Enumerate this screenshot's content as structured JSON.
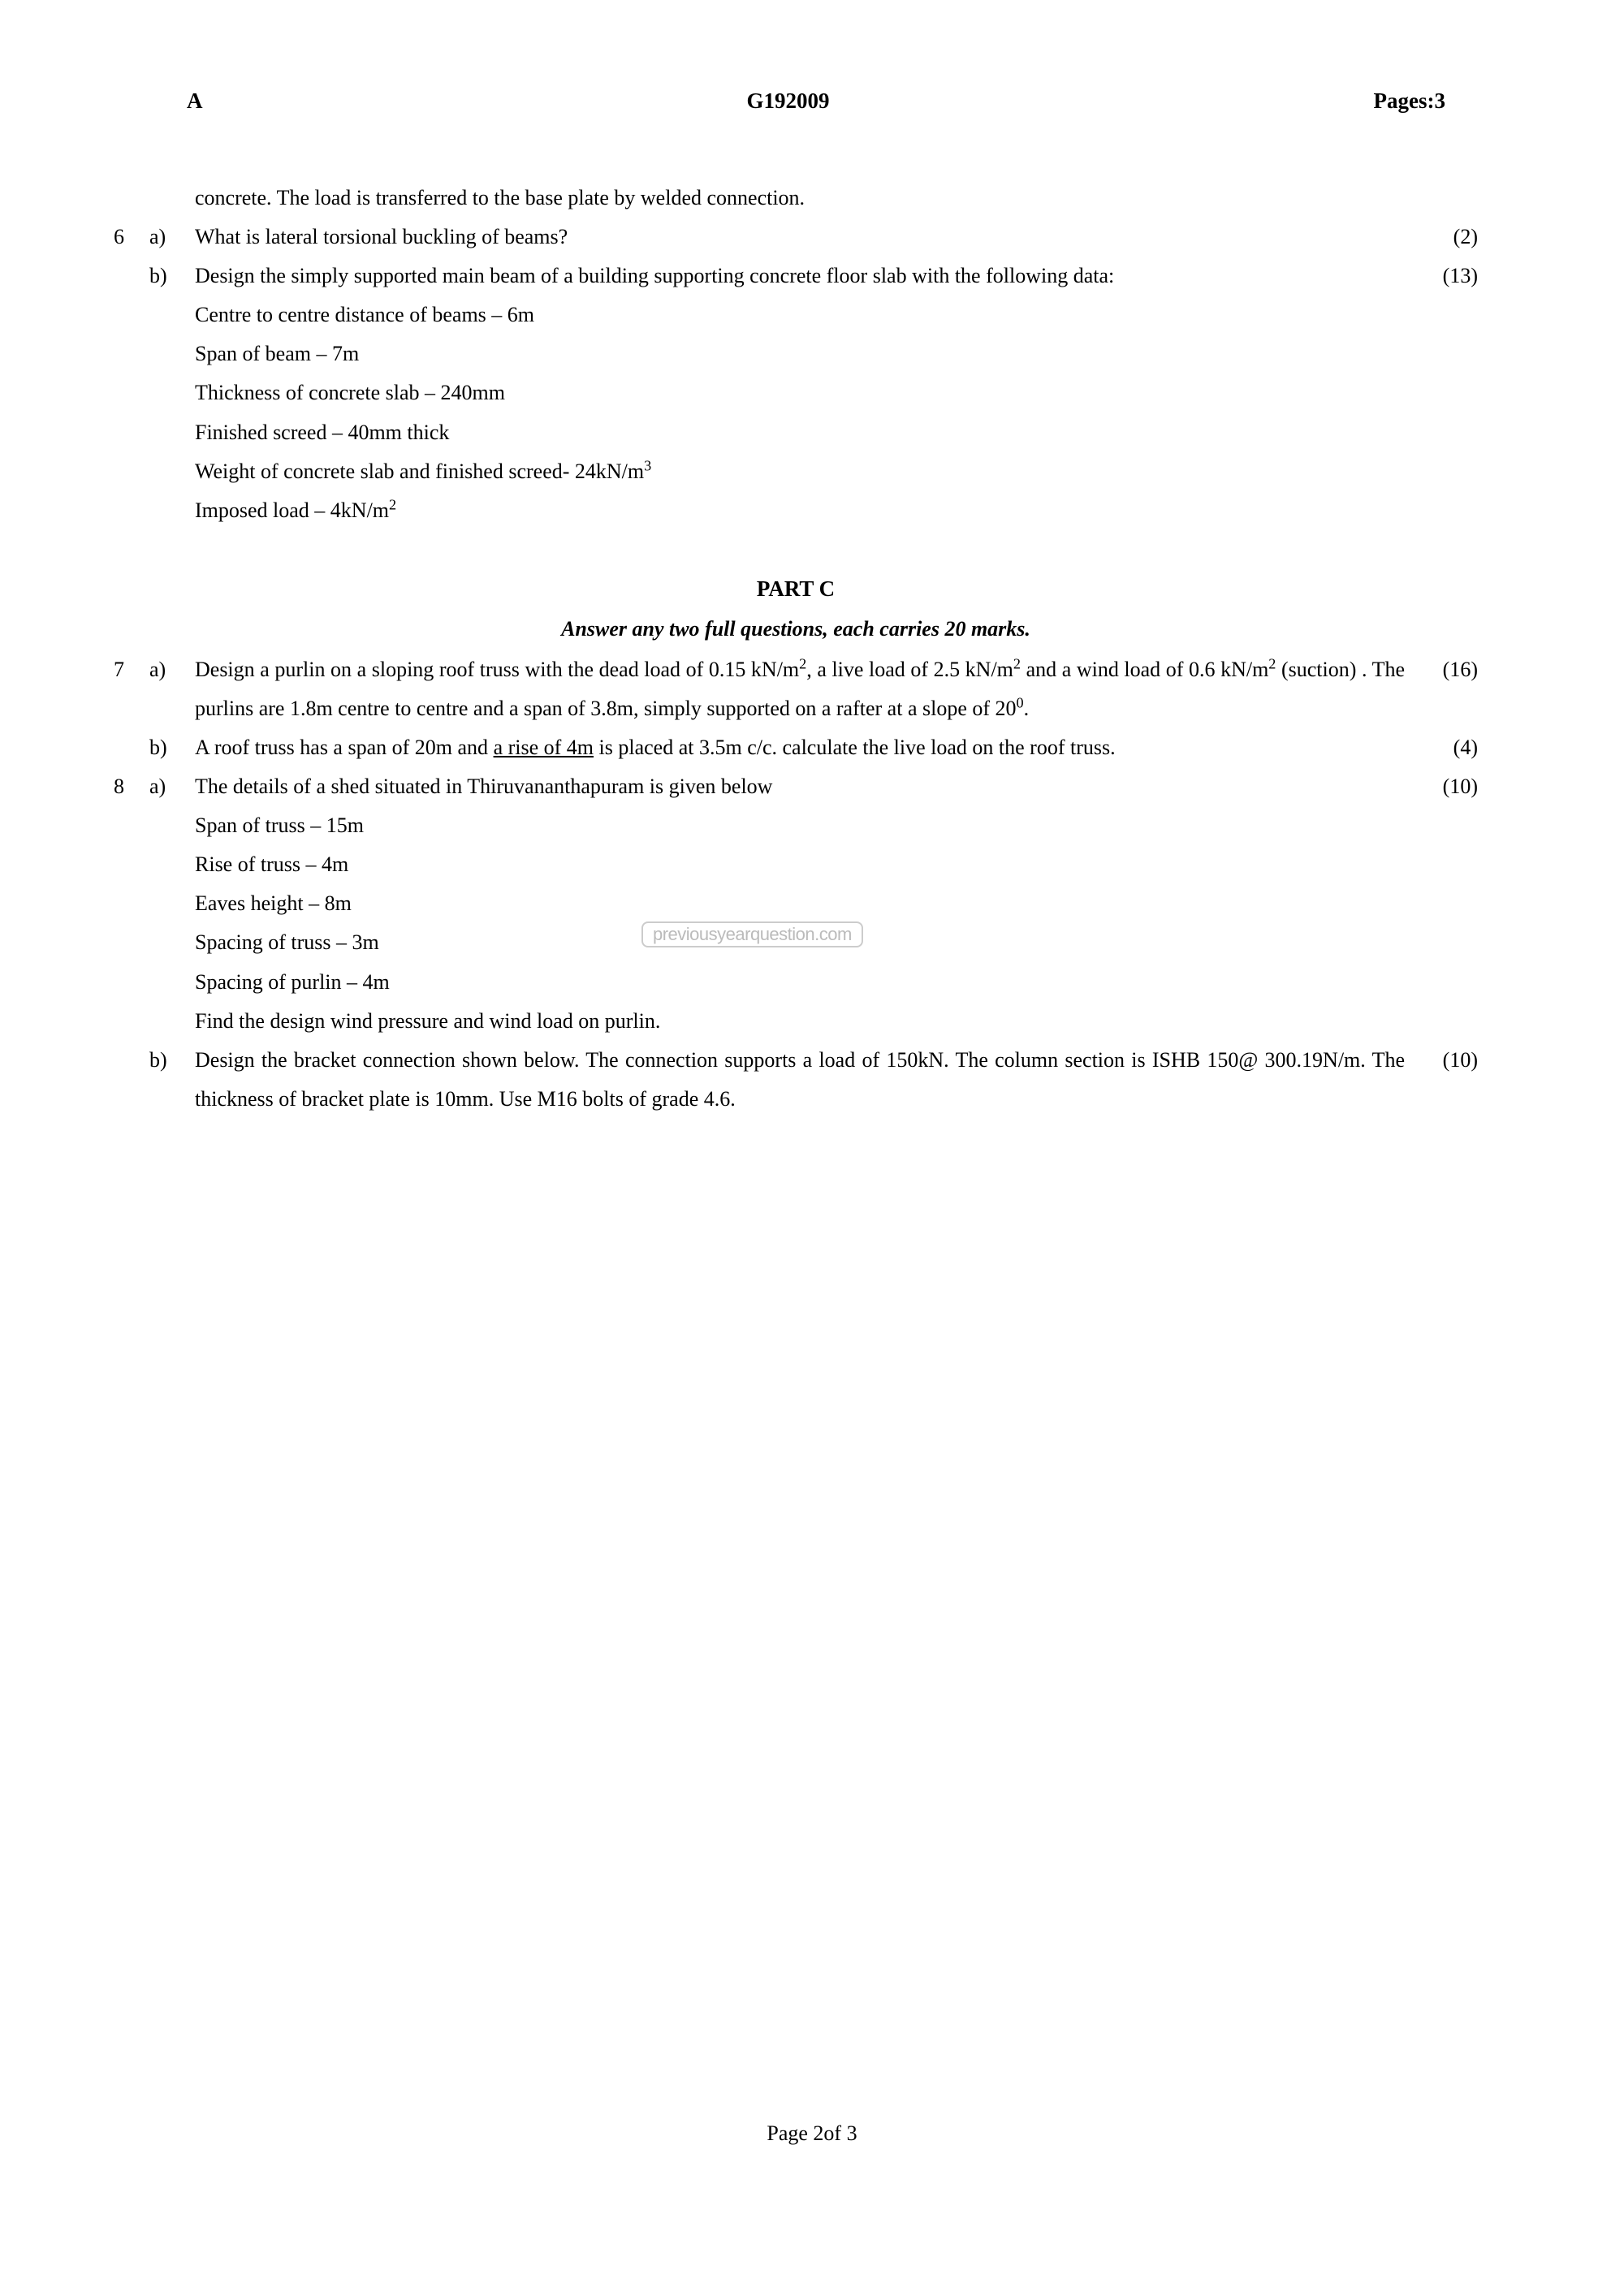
{
  "header": {
    "left": "A",
    "center": "G192009",
    "right": "Pages:3"
  },
  "continuation": {
    "text": "concrete. The load is transferred to the base plate by welded connection."
  },
  "q6": {
    "num": "6",
    "a": {
      "label": "a)",
      "text": "What is lateral torsional buckling of beams?",
      "marks": "(2)"
    },
    "b": {
      "label": "b)",
      "intro": "Design the simply supported main beam of a building supporting concrete floor slab with the following data:",
      "marks": "(13)",
      "line1": "Centre to centre distance of beams – 6m",
      "line2": "Span  of beam – 7m",
      "line3": "Thickness of concrete slab – 240mm",
      "line4": "Finished screed – 40mm thick",
      "line5a": "Weight of concrete slab and finished screed- 24kN/m",
      "line5b": "3",
      "line6a": "Imposed load – 4kN/m",
      "line6b": "2"
    }
  },
  "partC": {
    "title": "PART C",
    "subtitle": "Answer any two full questions, each carries 20 marks."
  },
  "q7": {
    "num": "7",
    "a": {
      "label": "a)",
      "t1": "Design a purlin on a sloping roof truss with the dead load of 0.15 kN/m",
      "t2": "2",
      "t3": ", a live load of 2.5 kN/m",
      "t4": "2",
      "t5": " and a wind load of   0.6 kN/m",
      "t6": "2",
      "t7": " (suction) . The purlins are 1.8m centre to centre and a span of 3.8m, simply supported on a rafter at a slope of   20",
      "t8": "0",
      "t9": ".",
      "marks": "(16)"
    },
    "b": {
      "label": "b)",
      "t1": "A roof truss has a span of 20m and ",
      "t2": "a rise of 4m",
      "t3": " is placed at 3.5m c/c. calculate the live load on the roof truss.",
      "marks": "(4)"
    }
  },
  "q8": {
    "num": "8",
    "a": {
      "label": "a)",
      "intro": "The details of a shed situated in Thiruvananthapuram  is given below",
      "marks": "(10)",
      "line1": "Span of truss – 15m",
      "line2": "Rise of truss – 4m",
      "line3": "Eaves height – 8m",
      "line4": "Spacing of truss – 3m",
      "line5": "Spacing of purlin – 4m",
      "line6": "Find the design wind pressure and wind load on purlin."
    },
    "b": {
      "label": "b)",
      "text": "Design the bracket connection shown below. The connection supports a load of 150kN. The column section is ISHB 150@ 300.19N/m. The thickness of bracket plate is 10mm. Use M16 bolts of grade 4.6.",
      "marks": "(10)"
    }
  },
  "watermark": "previousyearquestion.com",
  "footer": "Page 2of 3"
}
